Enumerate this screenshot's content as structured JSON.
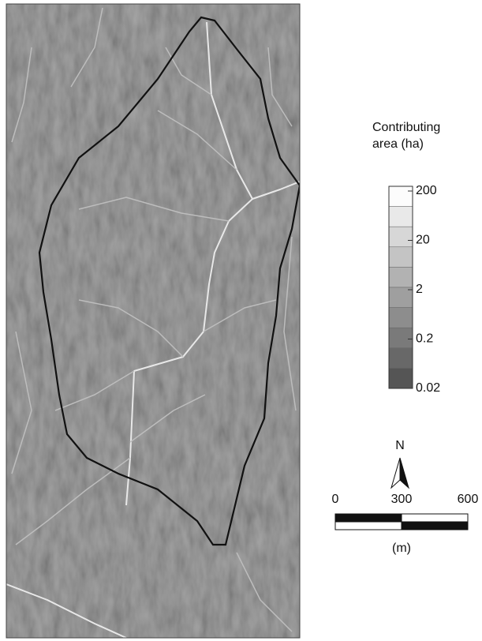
{
  "legend": {
    "title": [
      "Contributing",
      "area (ha)"
    ],
    "labels": [
      200,
      20,
      2,
      0.2,
      0.02
    ]
  },
  "north": "N",
  "scale": {
    "ticks": [
      0,
      300,
      600
    ],
    "unit": "(m)"
  }
}
